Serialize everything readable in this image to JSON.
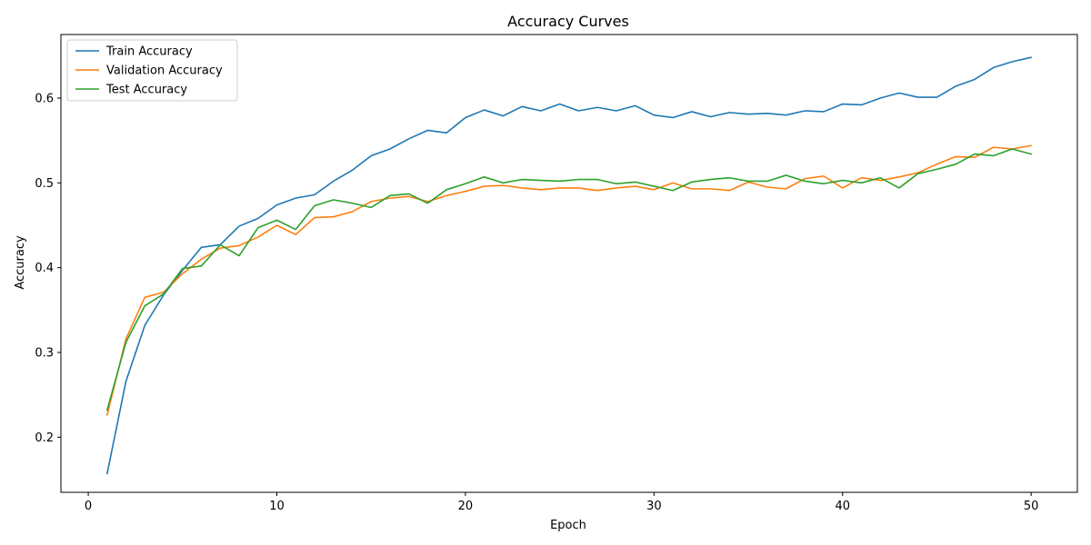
{
  "chart_data": {
    "type": "line",
    "title": "Accuracy Curves",
    "xlabel": "Epoch",
    "ylabel": "Accuracy",
    "xlim": [
      -1.45,
      52.45
    ],
    "ylim": [
      0.135,
      0.675
    ],
    "xticks": [
      0,
      10,
      20,
      30,
      40,
      50
    ],
    "yticks": [
      0.2,
      0.3,
      0.4,
      0.5,
      0.6
    ],
    "x": [
      1,
      2,
      3,
      4,
      5,
      6,
      7,
      8,
      9,
      10,
      11,
      12,
      13,
      14,
      15,
      16,
      17,
      18,
      19,
      20,
      21,
      22,
      23,
      24,
      25,
      26,
      27,
      28,
      29,
      30,
      31,
      32,
      33,
      34,
      35,
      36,
      37,
      38,
      39,
      40,
      41,
      42,
      43,
      44,
      45,
      46,
      47,
      48,
      49,
      50
    ],
    "grid": false,
    "legend_position": "upper left",
    "series": [
      {
        "name": "Train Accuracy",
        "color": "#1f77b4",
        "values": [
          0.157,
          0.266,
          0.332,
          0.368,
          0.397,
          0.424,
          0.427,
          0.449,
          0.458,
          0.474,
          0.482,
          0.486,
          0.502,
          0.515,
          0.532,
          0.54,
          0.552,
          0.562,
          0.559,
          0.577,
          0.586,
          0.579,
          0.59,
          0.585,
          0.593,
          0.585,
          0.589,
          0.585,
          0.591,
          0.58,
          0.577,
          0.584,
          0.578,
          0.583,
          0.581,
          0.582,
          0.58,
          0.585,
          0.584,
          0.593,
          0.592,
          0.6,
          0.606,
          0.601,
          0.601,
          0.614,
          0.622,
          0.636,
          0.643,
          0.648
        ]
      },
      {
        "name": "Validation Accuracy",
        "color": "#ff7f0e",
        "values": [
          0.226,
          0.316,
          0.365,
          0.371,
          0.393,
          0.41,
          0.423,
          0.426,
          0.436,
          0.45,
          0.439,
          0.459,
          0.46,
          0.466,
          0.478,
          0.482,
          0.484,
          0.478,
          0.485,
          0.49,
          0.496,
          0.497,
          0.494,
          0.492,
          0.494,
          0.494,
          0.491,
          0.494,
          0.496,
          0.492,
          0.5,
          0.493,
          0.493,
          0.491,
          0.501,
          0.495,
          0.493,
          0.505,
          0.508,
          0.494,
          0.506,
          0.503,
          0.507,
          0.512,
          0.522,
          0.531,
          0.53,
          0.542,
          0.54,
          0.544
        ]
      },
      {
        "name": "Test Accuracy",
        "color": "#2ca02c",
        "values": [
          0.232,
          0.312,
          0.355,
          0.369,
          0.399,
          0.402,
          0.427,
          0.414,
          0.447,
          0.456,
          0.445,
          0.473,
          0.48,
          0.476,
          0.471,
          0.485,
          0.487,
          0.476,
          0.492,
          0.499,
          0.507,
          0.5,
          0.504,
          0.503,
          0.502,
          0.504,
          0.504,
          0.499,
          0.501,
          0.496,
          0.491,
          0.501,
          0.504,
          0.506,
          0.502,
          0.502,
          0.509,
          0.502,
          0.499,
          0.503,
          0.5,
          0.506,
          0.494,
          0.511,
          0.516,
          0.522,
          0.534,
          0.532,
          0.54,
          0.534
        ]
      }
    ]
  }
}
